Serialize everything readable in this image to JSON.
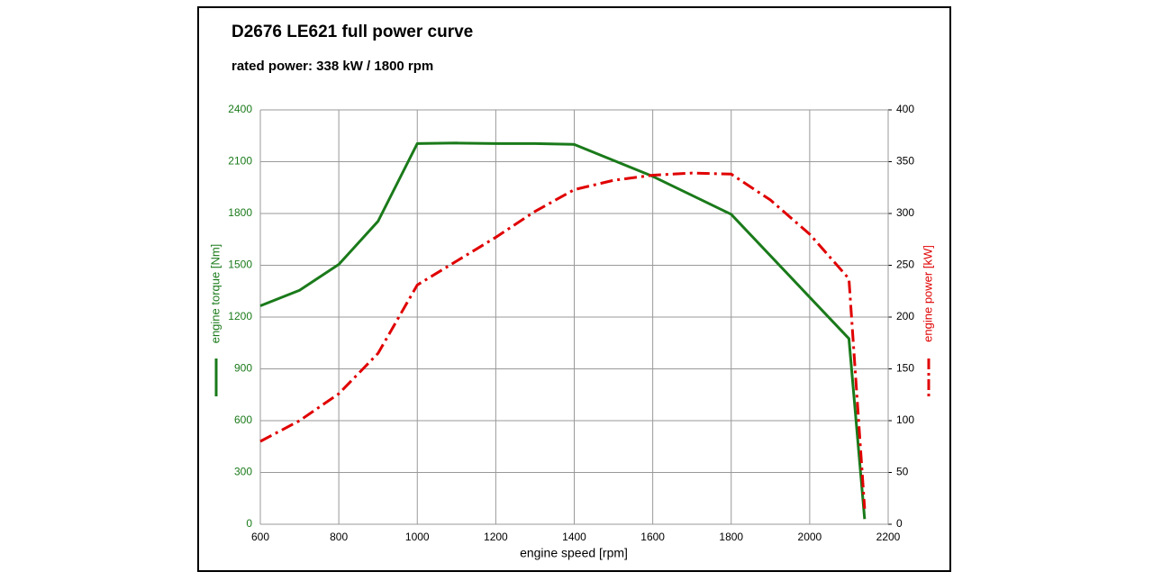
{
  "chart_data": {
    "type": "line",
    "title": "D2676 LE621   full power curve",
    "subtitle": "rated power: 338 kW / 1800 rpm",
    "xlabel": "engine speed [rpm]",
    "ylabel": "engine torque [Nm]",
    "y2label": "engine power [kW]",
    "xlim": [
      600,
      2200
    ],
    "xticks": [
      600,
      800,
      1000,
      1200,
      1400,
      1600,
      1800,
      2000,
      2200
    ],
    "ylim": [
      0,
      2400
    ],
    "yticks": [
      0,
      300,
      600,
      900,
      1200,
      1500,
      1800,
      2100,
      2400
    ],
    "y2lim": [
      0,
      400
    ],
    "y2ticks": [
      0,
      50,
      100,
      150,
      200,
      250,
      300,
      350,
      400
    ],
    "grid": true,
    "series": [
      {
        "color": "#1a7a1a",
        "style": "solid",
        "x": [
          600,
          700,
          800,
          900,
          1000,
          1100,
          1200,
          1300,
          1400,
          1600,
          1800,
          2100,
          2140
        ],
        "values": [
          1265,
          1355,
          1505,
          1755,
          2205,
          2208,
          2205,
          2205,
          2200,
          2015,
          1795,
          1075,
          30
        ]
      },
      {
        "color": "#e00000",
        "style": "dashdot",
        "axis": "y2",
        "x": [
          600,
          700,
          800,
          900,
          1000,
          1100,
          1200,
          1300,
          1400,
          1500,
          1600,
          1700,
          1800,
          1900,
          2000,
          2100,
          2140
        ],
        "values": [
          80,
          100,
          126,
          165,
          231,
          254,
          277,
          302,
          323,
          332,
          337,
          339,
          338,
          313,
          280,
          237,
          15
        ]
      }
    ]
  }
}
